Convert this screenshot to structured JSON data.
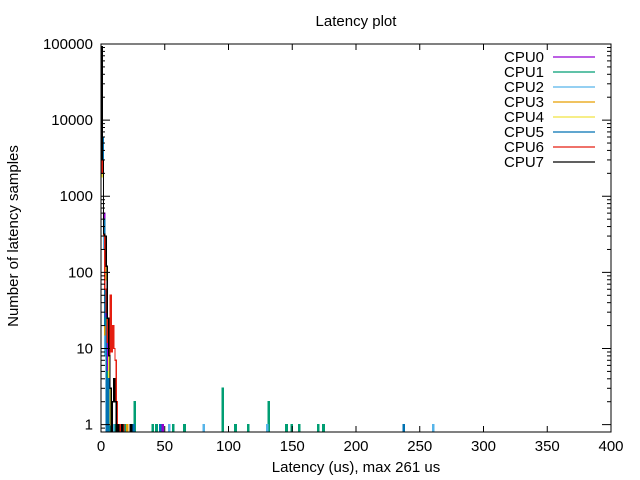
{
  "chart_data": {
    "type": "line",
    "title": "Latency plot",
    "xlabel": "Latency (us), max 261 us",
    "ylabel": "Number of latency samples",
    "xlim": [
      0,
      400
    ],
    "ylim": [
      0.8,
      100000
    ],
    "yscale": "log",
    "grid": false,
    "legend_position": "top-right",
    "x_ticks": [
      {
        "value": 0,
        "label": "0"
      },
      {
        "value": 50,
        "label": "50"
      },
      {
        "value": 100,
        "label": "100"
      },
      {
        "value": 150,
        "label": "150"
      },
      {
        "value": 200,
        "label": "200"
      },
      {
        "value": 250,
        "label": "250"
      },
      {
        "value": 300,
        "label": "300"
      },
      {
        "value": 350,
        "label": "350"
      },
      {
        "value": 400,
        "label": "400"
      }
    ],
    "y_ticks": [
      {
        "value": 1,
        "label": "1"
      },
      {
        "value": 10,
        "label": "10"
      },
      {
        "value": 100,
        "label": "100"
      },
      {
        "value": 1000,
        "label": "1000"
      },
      {
        "value": 10000,
        "label": "10000"
      },
      {
        "value": 100000,
        "label": "100000"
      }
    ],
    "series": [
      {
        "name": "CPU0",
        "color": "#9400d3",
        "points": [
          [
            0,
            90000
          ],
          [
            1,
            5000
          ],
          [
            2,
            600
          ],
          [
            3,
            60
          ],
          [
            4,
            12
          ],
          [
            5,
            4
          ],
          [
            6,
            2
          ],
          [
            8,
            1
          ],
          [
            11,
            1
          ],
          [
            14,
            1
          ],
          [
            25,
            1
          ],
          [
            48,
            1
          ]
        ]
      },
      {
        "name": "CPU1",
        "color": "#009e73",
        "points": [
          [
            0,
            85000
          ],
          [
            1,
            4000
          ],
          [
            2,
            300
          ],
          [
            3,
            25
          ],
          [
            4,
            5
          ],
          [
            6,
            2
          ],
          [
            10,
            1
          ],
          [
            14,
            1
          ],
          [
            18,
            1
          ],
          [
            26,
            2
          ],
          [
            40,
            1
          ],
          [
            43,
            1
          ],
          [
            56,
            1
          ],
          [
            65,
            1
          ],
          [
            95,
            3
          ],
          [
            105,
            1
          ],
          [
            115,
            1
          ],
          [
            131,
            2
          ],
          [
            145,
            1
          ],
          [
            149,
            1
          ],
          [
            155,
            1
          ],
          [
            170,
            1
          ],
          [
            174,
            1
          ]
        ]
      },
      {
        "name": "CPU2",
        "color": "#56b4e9",
        "points": [
          [
            0,
            80000
          ],
          [
            1,
            3000
          ],
          [
            2,
            200
          ],
          [
            3,
            8
          ],
          [
            5,
            2
          ],
          [
            9,
            1
          ],
          [
            15,
            1
          ],
          [
            53,
            1
          ],
          [
            80,
            1
          ],
          [
            130,
            1
          ],
          [
            260,
            1
          ]
        ]
      },
      {
        "name": "CPU3",
        "color": "#e69f00",
        "points": [
          [
            0,
            88000
          ],
          [
            1,
            2500
          ],
          [
            2,
            400
          ],
          [
            3,
            15
          ],
          [
            5,
            3
          ],
          [
            8,
            1
          ],
          [
            12,
            1
          ],
          [
            20,
            1
          ]
        ]
      },
      {
        "name": "CPU4",
        "color": "#f0e442",
        "points": [
          [
            0,
            87000
          ],
          [
            1,
            1800
          ],
          [
            2,
            300
          ],
          [
            3,
            200
          ],
          [
            4,
            80
          ],
          [
            5,
            12
          ],
          [
            6,
            3
          ],
          [
            7,
            1
          ]
        ]
      },
      {
        "name": "CPU5",
        "color": "#0072b2",
        "points": [
          [
            0,
            91000
          ],
          [
            1,
            6000
          ],
          [
            2,
            500
          ],
          [
            3,
            20
          ],
          [
            5,
            4
          ],
          [
            8,
            2
          ],
          [
            12,
            1
          ],
          [
            25,
            1
          ],
          [
            46,
            1
          ],
          [
            237,
            1
          ]
        ]
      },
      {
        "name": "CPU6",
        "color": "#e51e10",
        "points": [
          [
            0,
            89000
          ],
          [
            1,
            2000
          ],
          [
            2,
            300
          ],
          [
            3,
            60
          ],
          [
            4,
            30
          ],
          [
            5,
            12
          ],
          [
            6,
            8
          ],
          [
            7,
            50
          ],
          [
            8,
            9
          ],
          [
            9,
            20
          ],
          [
            10,
            10
          ],
          [
            11,
            7
          ],
          [
            12,
            2
          ],
          [
            14,
            1
          ],
          [
            17,
            1
          ]
        ]
      },
      {
        "name": "CPU7",
        "color": "#000000",
        "points": [
          [
            0,
            92000
          ],
          [
            1,
            3000
          ],
          [
            2,
            320
          ],
          [
            3,
            300
          ],
          [
            4,
            120
          ],
          [
            5,
            25
          ],
          [
            6,
            8
          ],
          [
            7,
            3
          ],
          [
            9,
            2
          ],
          [
            10,
            4
          ],
          [
            11,
            2
          ],
          [
            13,
            1
          ],
          [
            16,
            1
          ],
          [
            23,
            1
          ]
        ]
      }
    ]
  }
}
